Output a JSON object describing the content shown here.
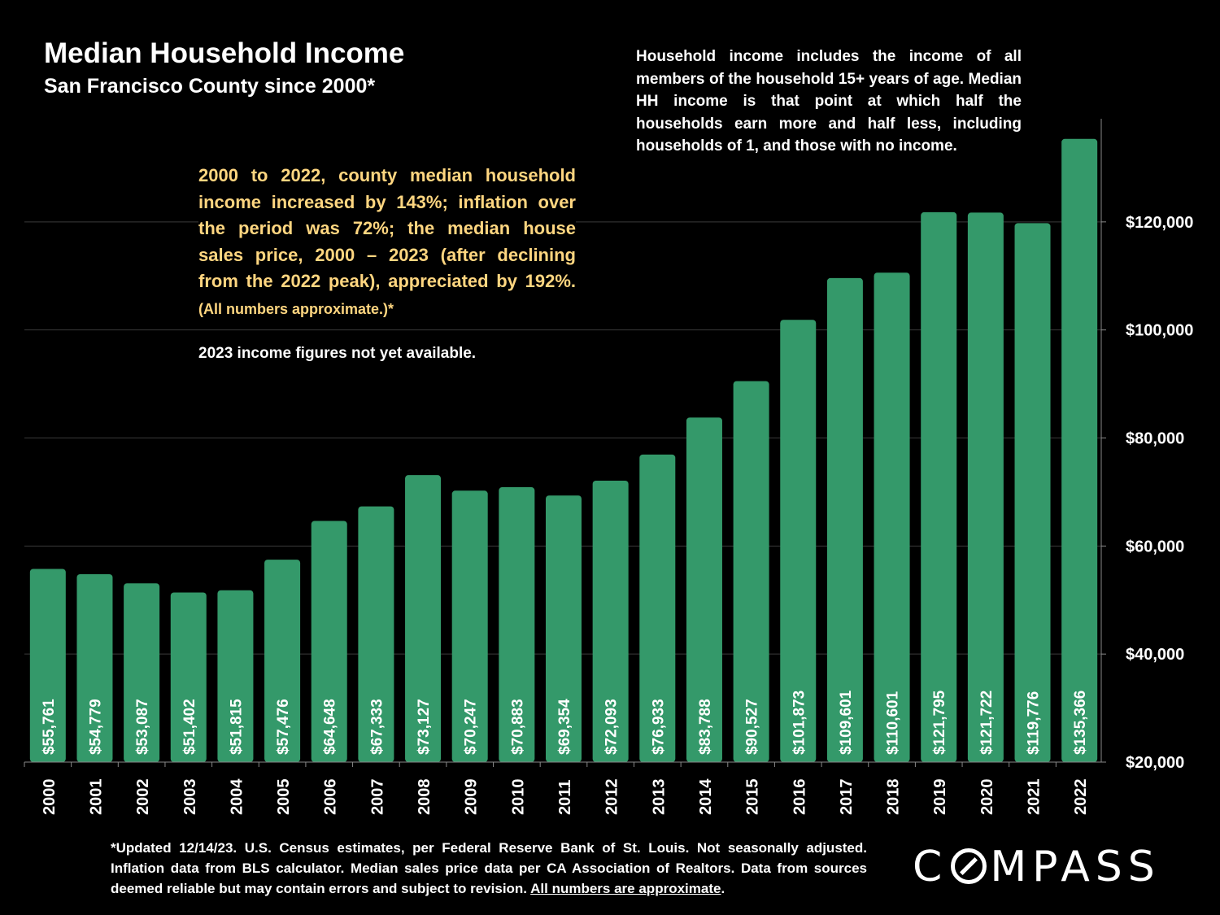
{
  "chart_data": {
    "type": "bar",
    "title": "Median Household Income",
    "subtitle": "San Francisco County since 2000*",
    "categories": [
      "2000",
      "2001",
      "2002",
      "2003",
      "2004",
      "2005",
      "2006",
      "2007",
      "2008",
      "2009",
      "2010",
      "2011",
      "2012",
      "2013",
      "2014",
      "2015",
      "2016",
      "2017",
      "2018",
      "2019",
      "2020",
      "2021",
      "2022"
    ],
    "values": [
      55761,
      54779,
      53087,
      51402,
      51815,
      57476,
      64648,
      67333,
      73127,
      70247,
      70883,
      69354,
      72093,
      76933,
      83788,
      90527,
      101873,
      109601,
      110601,
      121795,
      121722,
      119776,
      135366
    ],
    "value_labels": [
      "$55,761",
      "$54,779",
      "$53,087",
      "$51,402",
      "$51,815",
      "$57,476",
      "$64,648",
      "$67,333",
      "$73,127",
      "$70,247",
      "$70,883",
      "$69,354",
      "$72,093",
      "$76,933",
      "$83,788",
      "$90,527",
      "$101,873",
      "$109,601",
      "$110,601",
      "$121,795",
      "$121,722",
      "$119,776",
      "$135,366"
    ],
    "ylim": [
      20000,
      140000
    ],
    "yticks": [
      20000,
      40000,
      60000,
      80000,
      100000,
      120000
    ],
    "ytick_labels": [
      "$20,000",
      "$40,000",
      "$60,000",
      "$80,000",
      "$100,000",
      "$120,000"
    ],
    "y_axis_side": "right",
    "grid": true,
    "bar_color": "#34996a",
    "xlabel": "",
    "ylabel": ""
  },
  "annotations": {
    "definition": "Household income includes the income of all members of the household 15+ years of age. Median HH income is that point at which half the households earn more and half less, including households of 1, and those with no income.",
    "summary_main": "2000 to 2022, county median household income increased by 143%; inflation over the period was 72%; the median house sales price, 2000 – 2023 (after declining from the 2022 peak), appreciated by 192%.",
    "summary_small": "(All numbers approximate.)*",
    "note_2023": "2023 income figures not yet available."
  },
  "footnote": {
    "text": "*Updated 12/14/23. U.S. Census estimates, per Federal Reserve Bank of St. Louis. Not seasonally adjusted. Inflation data from BLS calculator. Median sales price data per CA Association of Realtors. Data from sources deemed reliable but may contain errors and subject to revision.",
    "underlined": "All numbers are approximate",
    "end": "."
  },
  "logo": {
    "before": "C",
    "after": "MPASS"
  },
  "colors": {
    "background": "#000000",
    "accent_text": "#ffd680",
    "bar": "#34996a",
    "grid": "#3a3a3a"
  }
}
